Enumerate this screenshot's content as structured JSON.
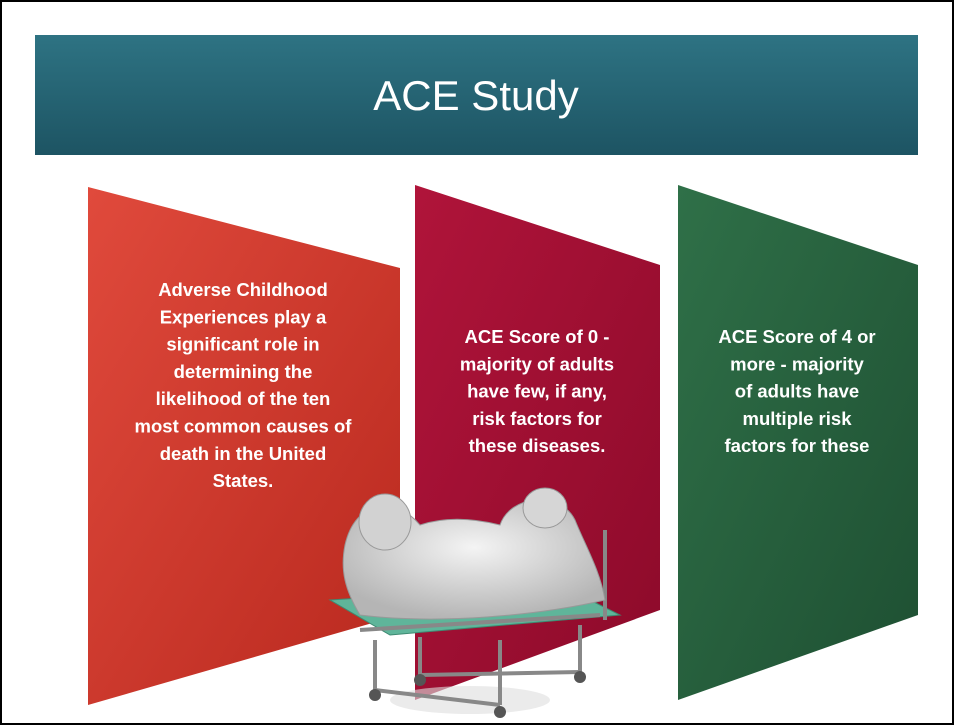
{
  "slide": {
    "title": "ACE Study",
    "panels": [
      {
        "lines": [
          "Adverse Childhood",
          "Experiences play a",
          "significant role in",
          "determining the",
          "likelihood of the ten",
          "most common causes of",
          "death in the United",
          "States."
        ]
      },
      {
        "lines": [
          "ACE Score of 0 -",
          "majority of adults",
          "have few, if any,",
          "risk factors for",
          "these diseases."
        ]
      },
      {
        "lines": [
          "ACE Score of 4 or",
          "more -  majority",
          "of adults have",
          "multiple risk",
          "factors for these"
        ]
      }
    ]
  }
}
